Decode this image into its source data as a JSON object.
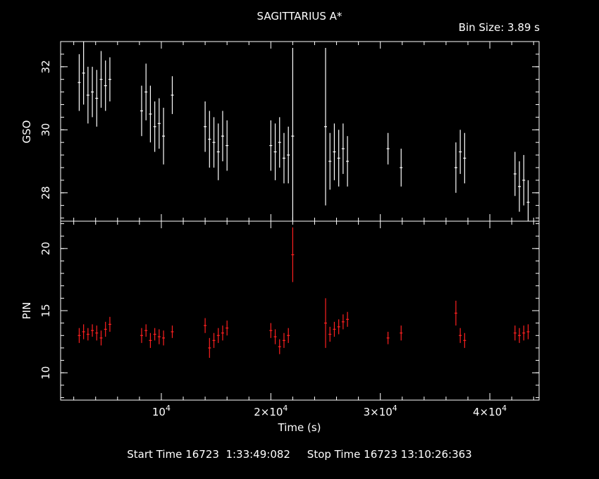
{
  "header": {
    "title": "SAGITTARIUS A*",
    "bin_size": "Bin Size: 3.89 s"
  },
  "footer": {
    "start_label": "Start Time",
    "start_value": "16723  1:33:49:082",
    "stop_label": "Stop Time",
    "stop_value": "16723 13:10:26:363"
  },
  "colors": {
    "gso": "#ffffff",
    "pin": "#ff2020",
    "axes": "#ffffff",
    "background": "#000000"
  },
  "chart_data": [
    {
      "type": "scatter",
      "ylabel": "GSO",
      "xlim": [
        800,
        44500
      ],
      "ylim": [
        27.1,
        32.8
      ],
      "yticks": [
        28,
        30,
        32
      ],
      "color": "#ffffff",
      "series": [
        {
          "x": [
            2500,
            2900,
            3300,
            3700,
            4100,
            4500,
            4900,
            5300,
            8200,
            8600,
            9000,
            9400,
            9800,
            10200,
            11000,
            14000,
            14400,
            14800,
            15200,
            15600,
            16000,
            20000,
            20400,
            20800,
            21200,
            21600,
            22000,
            25000,
            25400,
            25800,
            26200,
            26600,
            27000,
            30700,
            31900,
            36900,
            37300,
            37700,
            42300,
            42700,
            43100,
            43500
          ],
          "y": [
            31.5,
            31.8,
            31.1,
            31.2,
            31.0,
            31.6,
            31.4,
            31.6,
            30.6,
            31.2,
            30.5,
            30.1,
            30.2,
            29.8,
            31.1,
            30.1,
            29.7,
            29.6,
            29.3,
            29.8,
            29.5,
            29.5,
            29.3,
            29.6,
            29.1,
            29.2,
            29.8,
            30.1,
            29.0,
            29.3,
            29.1,
            29.4,
            29.0,
            29.4,
            28.8,
            28.8,
            29.3,
            29.1,
            28.6,
            28.2,
            28.4,
            27.7
          ],
          "err": [
            0.9,
            1.0,
            0.9,
            0.8,
            0.9,
            0.9,
            0.8,
            0.7,
            0.8,
            0.9,
            0.9,
            0.8,
            0.8,
            0.9,
            0.6,
            0.8,
            0.9,
            0.8,
            0.9,
            0.8,
            0.8,
            0.8,
            0.9,
            0.8,
            0.8,
            0.9,
            2.8,
            2.5,
            0.9,
            0.9,
            0.9,
            0.8,
            0.8,
            0.5,
            0.6,
            0.8,
            0.7,
            0.8,
            0.7,
            0.8,
            0.8,
            0.7
          ]
        }
      ]
    },
    {
      "type": "scatter",
      "ylabel": "PIN",
      "xlabel": "Time (s)",
      "xlim": [
        800,
        44500
      ],
      "ylim": [
        7.8,
        22.2
      ],
      "yticks": [
        10,
        15,
        20
      ],
      "xticks": [
        10000,
        20000,
        30000,
        40000
      ],
      "xtick_labels": [
        {
          "base": "10",
          "exp": "4"
        },
        {
          "base": "2×10",
          "exp": "4"
        },
        {
          "base": "3×10",
          "exp": "4"
        },
        {
          "base": "4×10",
          "exp": "4"
        }
      ],
      "color": "#ff2020",
      "series": [
        {
          "x": [
            2500,
            2900,
            3300,
            3700,
            4100,
            4500,
            4900,
            5300,
            8200,
            8600,
            9000,
            9400,
            9800,
            10200,
            11000,
            14000,
            14400,
            14800,
            15200,
            15600,
            16000,
            20000,
            20400,
            20800,
            21200,
            21600,
            22000,
            25000,
            25400,
            25800,
            26200,
            26600,
            27000,
            30700,
            31900,
            36900,
            37300,
            37700,
            42300,
            42700,
            43100,
            43500
          ],
          "y": [
            13.0,
            13.3,
            13.1,
            13.4,
            13.2,
            12.8,
            13.5,
            13.9,
            13.0,
            13.4,
            12.6,
            13.1,
            12.9,
            12.8,
            13.3,
            13.8,
            12.0,
            12.6,
            13.0,
            13.2,
            13.6,
            13.4,
            12.9,
            12.1,
            12.6,
            13.0,
            19.5,
            14.0,
            13.1,
            13.5,
            13.7,
            14.1,
            14.3,
            12.8,
            13.2,
            14.8,
            13.0,
            12.6,
            13.2,
            13.0,
            13.2,
            13.3
          ],
          "err": [
            0.6,
            0.6,
            0.5,
            0.5,
            0.6,
            0.6,
            0.6,
            0.6,
            0.6,
            0.5,
            0.6,
            0.5,
            0.6,
            0.6,
            0.5,
            0.6,
            0.8,
            0.6,
            0.6,
            0.6,
            0.6,
            0.6,
            0.6,
            0.6,
            0.6,
            0.6,
            2.2,
            2.0,
            0.6,
            0.6,
            0.6,
            0.6,
            0.6,
            0.5,
            0.6,
            1.0,
            0.6,
            0.6,
            0.6,
            0.6,
            0.6,
            0.6
          ]
        }
      ]
    }
  ]
}
